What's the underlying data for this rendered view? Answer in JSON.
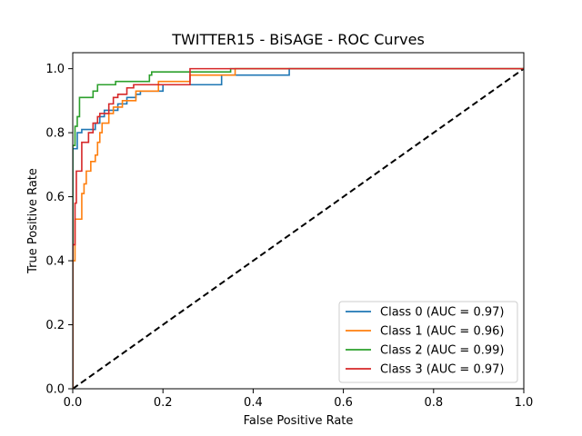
{
  "chart_data": {
    "type": "line",
    "title": "TWITTER15 - BiSAGE - ROC Curves",
    "xlabel": "False Positive Rate",
    "ylabel": "True Positive Rate",
    "xlim": [
      0,
      1
    ],
    "ylim": [
      0,
      1.05
    ],
    "x_ticks": [
      "0.0",
      "0.2",
      "0.4",
      "0.6",
      "0.8",
      "1.0"
    ],
    "y_ticks": [
      "0.0",
      "0.2",
      "0.4",
      "0.6",
      "0.8",
      "1.0"
    ],
    "grid": false,
    "legend_position": "lower-right",
    "series": [
      {
        "name": "Class 0 (AUC = 0.97)",
        "color": "#1f77b4",
        "points": [
          [
            0,
            0
          ],
          [
            0,
            0.75
          ],
          [
            0.01,
            0.75
          ],
          [
            0.01,
            0.8
          ],
          [
            0.02,
            0.8
          ],
          [
            0.02,
            0.81
          ],
          [
            0.05,
            0.81
          ],
          [
            0.05,
            0.83
          ],
          [
            0.06,
            0.83
          ],
          [
            0.06,
            0.85
          ],
          [
            0.07,
            0.85
          ],
          [
            0.07,
            0.87
          ],
          [
            0.1,
            0.87
          ],
          [
            0.1,
            0.89
          ],
          [
            0.12,
            0.89
          ],
          [
            0.12,
            0.91
          ],
          [
            0.14,
            0.91
          ],
          [
            0.14,
            0.92
          ],
          [
            0.15,
            0.92
          ],
          [
            0.15,
            0.93
          ],
          [
            0.2,
            0.93
          ],
          [
            0.2,
            0.95
          ],
          [
            0.33,
            0.95
          ],
          [
            0.33,
            0.98
          ],
          [
            0.48,
            0.98
          ],
          [
            0.48,
            1.0
          ],
          [
            1,
            1
          ]
        ]
      },
      {
        "name": "Class 1 (AUC = 0.96)",
        "color": "#ff7f0e",
        "points": [
          [
            0,
            0
          ],
          [
            0,
            0.4
          ],
          [
            0.005,
            0.4
          ],
          [
            0.005,
            0.53
          ],
          [
            0.02,
            0.53
          ],
          [
            0.02,
            0.61
          ],
          [
            0.025,
            0.61
          ],
          [
            0.025,
            0.64
          ],
          [
            0.03,
            0.64
          ],
          [
            0.03,
            0.68
          ],
          [
            0.04,
            0.68
          ],
          [
            0.04,
            0.71
          ],
          [
            0.05,
            0.71
          ],
          [
            0.05,
            0.73
          ],
          [
            0.055,
            0.73
          ],
          [
            0.055,
            0.77
          ],
          [
            0.06,
            0.77
          ],
          [
            0.06,
            0.8
          ],
          [
            0.065,
            0.8
          ],
          [
            0.065,
            0.83
          ],
          [
            0.08,
            0.83
          ],
          [
            0.08,
            0.86
          ],
          [
            0.09,
            0.86
          ],
          [
            0.09,
            0.88
          ],
          [
            0.11,
            0.88
          ],
          [
            0.11,
            0.9
          ],
          [
            0.14,
            0.9
          ],
          [
            0.14,
            0.93
          ],
          [
            0.19,
            0.93
          ],
          [
            0.19,
            0.96
          ],
          [
            0.26,
            0.96
          ],
          [
            0.26,
            0.98
          ],
          [
            0.36,
            0.98
          ],
          [
            0.36,
            1.0
          ],
          [
            1,
            1
          ]
        ]
      },
      {
        "name": "Class 2 (AUC = 0.99)",
        "color": "#2ca02c",
        "points": [
          [
            0,
            0
          ],
          [
            0,
            0.76
          ],
          [
            0.005,
            0.76
          ],
          [
            0.005,
            0.82
          ],
          [
            0.01,
            0.82
          ],
          [
            0.01,
            0.85
          ],
          [
            0.015,
            0.85
          ],
          [
            0.015,
            0.91
          ],
          [
            0.045,
            0.91
          ],
          [
            0.045,
            0.93
          ],
          [
            0.055,
            0.93
          ],
          [
            0.055,
            0.95
          ],
          [
            0.095,
            0.95
          ],
          [
            0.095,
            0.96
          ],
          [
            0.17,
            0.96
          ],
          [
            0.17,
            0.98
          ],
          [
            0.175,
            0.98
          ],
          [
            0.175,
            0.99
          ],
          [
            0.35,
            0.99
          ],
          [
            0.35,
            1.0
          ],
          [
            1,
            1
          ]
        ]
      },
      {
        "name": "Class 3 (AUC = 0.97)",
        "color": "#d62728",
        "points": [
          [
            0,
            0
          ],
          [
            0,
            0.45
          ],
          [
            0.005,
            0.45
          ],
          [
            0.005,
            0.58
          ],
          [
            0.008,
            0.58
          ],
          [
            0.008,
            0.68
          ],
          [
            0.02,
            0.68
          ],
          [
            0.02,
            0.77
          ],
          [
            0.035,
            0.77
          ],
          [
            0.035,
            0.8
          ],
          [
            0.045,
            0.8
          ],
          [
            0.045,
            0.83
          ],
          [
            0.055,
            0.83
          ],
          [
            0.055,
            0.85
          ],
          [
            0.06,
            0.85
          ],
          [
            0.06,
            0.86
          ],
          [
            0.08,
            0.86
          ],
          [
            0.08,
            0.89
          ],
          [
            0.09,
            0.89
          ],
          [
            0.09,
            0.91
          ],
          [
            0.1,
            0.91
          ],
          [
            0.1,
            0.92
          ],
          [
            0.12,
            0.92
          ],
          [
            0.12,
            0.94
          ],
          [
            0.135,
            0.94
          ],
          [
            0.135,
            0.95
          ],
          [
            0.26,
            0.95
          ],
          [
            0.26,
            1.0
          ],
          [
            1,
            1
          ]
        ]
      }
    ],
    "reference_line": {
      "color": "#000000",
      "style": "dashed",
      "points": [
        [
          0,
          0
        ],
        [
          1,
          1
        ]
      ]
    }
  }
}
